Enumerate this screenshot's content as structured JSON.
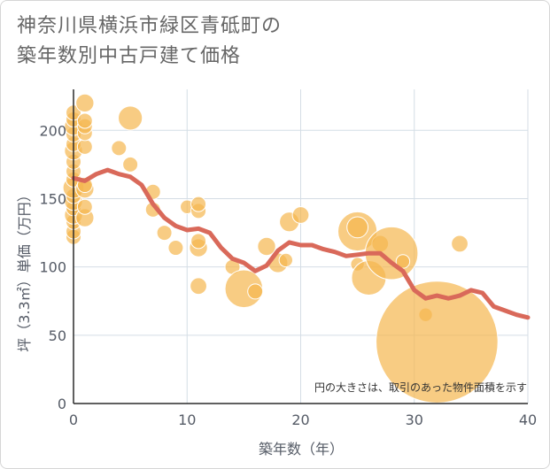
{
  "chart_data": {
    "type": "scatter",
    "title_lines": [
      "神奈川県横浜市緑区青砥町の",
      "築年数別中古戸建て価格"
    ],
    "xlabel": "築年数（年）",
    "ylabel": "坪（3.3㎡）単価（万円）",
    "note": "円の大きさは、取引のあった物件面積を示す",
    "xlim": [
      0,
      40
    ],
    "ylim": [
      0,
      230
    ],
    "x_ticks": [
      0,
      10,
      20,
      30,
      40
    ],
    "y_ticks": [
      0,
      50,
      100,
      150,
      200
    ],
    "grid": true,
    "colors": {
      "bubble": "#f5b74f",
      "line": "#d9695a",
      "grid": "#d4dde5",
      "axis": "#2b2b2b"
    },
    "bubbles": [
      {
        "x": 0,
        "y": 122,
        "size": 1.0
      },
      {
        "x": 0,
        "y": 126,
        "size": 1.0
      },
      {
        "x": 0,
        "y": 133,
        "size": 1.0
      },
      {
        "x": 0,
        "y": 138,
        "size": 1.2
      },
      {
        "x": 0,
        "y": 143,
        "size": 1.0
      },
      {
        "x": 0,
        "y": 148,
        "size": 1.2
      },
      {
        "x": 0,
        "y": 152,
        "size": 1.0
      },
      {
        "x": 0,
        "y": 158,
        "size": 1.4
      },
      {
        "x": 0,
        "y": 164,
        "size": 1.0
      },
      {
        "x": 0,
        "y": 170,
        "size": 1.0
      },
      {
        "x": 0,
        "y": 177,
        "size": 1.0
      },
      {
        "x": 0,
        "y": 185,
        "size": 1.2
      },
      {
        "x": 0,
        "y": 190,
        "size": 1.0
      },
      {
        "x": 0,
        "y": 197,
        "size": 1.0
      },
      {
        "x": 0,
        "y": 203,
        "size": 1.2
      },
      {
        "x": 0,
        "y": 208,
        "size": 1.0
      },
      {
        "x": 0,
        "y": 213,
        "size": 1.0
      },
      {
        "x": 1,
        "y": 136,
        "size": 1.2
      },
      {
        "x": 1,
        "y": 144,
        "size": 1.0
      },
      {
        "x": 1,
        "y": 157,
        "size": 1.2
      },
      {
        "x": 1,
        "y": 160,
        "size": 1.0
      },
      {
        "x": 1,
        "y": 188,
        "size": 1.0
      },
      {
        "x": 1,
        "y": 198,
        "size": 1.0
      },
      {
        "x": 1,
        "y": 203,
        "size": 1.0
      },
      {
        "x": 1,
        "y": 207,
        "size": 1.0
      },
      {
        "x": 1,
        "y": 220,
        "size": 1.2
      },
      {
        "x": 4,
        "y": 187,
        "size": 1.0
      },
      {
        "x": 5,
        "y": 175,
        "size": 1.0
      },
      {
        "x": 5,
        "y": 209,
        "size": 1.6
      },
      {
        "x": 7,
        "y": 142,
        "size": 1.0
      },
      {
        "x": 7,
        "y": 155,
        "size": 1.0
      },
      {
        "x": 8,
        "y": 125,
        "size": 1.0
      },
      {
        "x": 9,
        "y": 114,
        "size": 1.0
      },
      {
        "x": 10,
        "y": 144,
        "size": 0.9
      },
      {
        "x": 11,
        "y": 86,
        "size": 1.1
      },
      {
        "x": 11,
        "y": 114,
        "size": 1.2
      },
      {
        "x": 11,
        "y": 119,
        "size": 1.0
      },
      {
        "x": 11,
        "y": 141,
        "size": 1.0
      },
      {
        "x": 11,
        "y": 146,
        "size": 1.0
      },
      {
        "x": 14,
        "y": 100,
        "size": 1.0
      },
      {
        "x": 15,
        "y": 84,
        "size": 2.5
      },
      {
        "x": 16,
        "y": 82,
        "size": 1.0
      },
      {
        "x": 17,
        "y": 115,
        "size": 1.2
      },
      {
        "x": 18,
        "y": 103,
        "size": 1.3
      },
      {
        "x": 18.7,
        "y": 105,
        "size": 0.9
      },
      {
        "x": 19,
        "y": 133,
        "size": 1.3
      },
      {
        "x": 20,
        "y": 138,
        "size": 1.1
      },
      {
        "x": 25,
        "y": 126,
        "size": 2.6
      },
      {
        "x": 25,
        "y": 129,
        "size": 1.4
      },
      {
        "x": 25,
        "y": 102,
        "size": 0.9
      },
      {
        "x": 26,
        "y": 92,
        "size": 2.3
      },
      {
        "x": 27,
        "y": 117,
        "size": 1.1
      },
      {
        "x": 28,
        "y": 110,
        "size": 3.5
      },
      {
        "x": 29,
        "y": 104,
        "size": 0.9
      },
      {
        "x": 31,
        "y": 65,
        "size": 0.9
      },
      {
        "x": 32,
        "y": 45,
        "size": 8.1
      },
      {
        "x": 34,
        "y": 117,
        "size": 1.1
      }
    ],
    "trend_line": {
      "x": [
        0,
        1,
        2,
        3,
        4,
        5,
        6,
        7,
        8,
        9,
        10,
        11,
        12,
        13,
        14,
        15,
        16,
        17,
        18,
        19,
        20,
        21,
        22,
        23,
        24,
        25,
        26,
        27,
        28,
        29,
        30,
        31,
        32,
        33,
        34,
        35,
        36,
        37,
        38,
        39,
        40
      ],
      "y": [
        165,
        163,
        168,
        171,
        168,
        166,
        160,
        146,
        136,
        130,
        127,
        128,
        125,
        114,
        106,
        103,
        97,
        101,
        112,
        118,
        116,
        116,
        113,
        111,
        108,
        109,
        110,
        110,
        103,
        97,
        83,
        77,
        79,
        77,
        79,
        83,
        81,
        71,
        68,
        65,
        63
      ]
    }
  }
}
